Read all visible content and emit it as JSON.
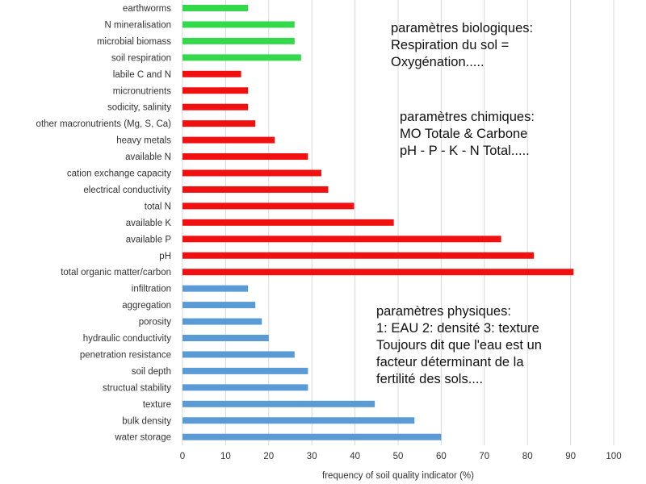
{
  "chart_data": {
    "type": "bar",
    "orientation": "horizontal",
    "title": "",
    "xlabel": "frequency of soil quality indicator (%)",
    "ylabel": "",
    "xlim": [
      0,
      100
    ],
    "xticks": [
      0,
      10,
      20,
      30,
      40,
      50,
      60,
      70,
      80,
      90,
      100
    ],
    "grid": "vertical",
    "colors": {
      "biological": "#33d94a",
      "chemical": "#f01010",
      "physical": "#5b9bd5"
    },
    "bars": [
      {
        "label": "earthworms",
        "value": 15.2,
        "group": "biological"
      },
      {
        "label": "N mineralisation",
        "value": 26,
        "group": "biological"
      },
      {
        "label": "microbial biomass",
        "value": 26,
        "group": "biological"
      },
      {
        "label": "soil respiration",
        "value": 27.5,
        "group": "biological"
      },
      {
        "label": "labile C and N",
        "value": 13.6,
        "group": "chemical"
      },
      {
        "label": "micronutrients",
        "value": 15.2,
        "group": "chemical"
      },
      {
        "label": "sodicity, salinity",
        "value": 15.2,
        "group": "chemical"
      },
      {
        "label": "other macronutrients (Mg, S, Ca)",
        "value": 16.9,
        "group": "chemical"
      },
      {
        "label": "heavy metals",
        "value": 21.4,
        "group": "chemical"
      },
      {
        "label": "available N",
        "value": 29.1,
        "group": "chemical"
      },
      {
        "label": "cation exchange capacity",
        "value": 32.2,
        "group": "chemical"
      },
      {
        "label": "electrical conductivity",
        "value": 33.8,
        "group": "chemical"
      },
      {
        "label": "total N",
        "value": 39.8,
        "group": "chemical"
      },
      {
        "label": "available K",
        "value": 49,
        "group": "chemical"
      },
      {
        "label": "available P",
        "value": 73.9,
        "group": "chemical"
      },
      {
        "label": "pH",
        "value": 81.5,
        "group": "chemical"
      },
      {
        "label": "total organic matter/carbon",
        "value": 90.7,
        "group": "chemical"
      },
      {
        "label": "infiltration",
        "value": 15.2,
        "group": "physical"
      },
      {
        "label": "aggregation",
        "value": 16.9,
        "group": "physical"
      },
      {
        "label": "porosity",
        "value": 18.4,
        "group": "physical"
      },
      {
        "label": "hydraulic conductivity",
        "value": 20,
        "group": "physical"
      },
      {
        "label": "penetration resistance",
        "value": 26,
        "group": "physical"
      },
      {
        "label": "soil depth",
        "value": 29.1,
        "group": "physical"
      },
      {
        "label": "structual stability",
        "value": 29.1,
        "group": "physical"
      },
      {
        "label": "texture",
        "value": 44.6,
        "group": "physical"
      },
      {
        "label": "bulk density",
        "value": 53.8,
        "group": "physical"
      },
      {
        "label": "water storage",
        "value": 60,
        "group": "physical"
      }
    ]
  },
  "annotations": {
    "biological": {
      "lines": [
        "paramètres biologiques:",
        "Respiration du sol =",
        "Oxygénation....."
      ]
    },
    "chemical": {
      "lines": [
        "paramètres chimiques:",
        "MO Totale & Carbone",
        "pH - P - K - N Total....."
      ]
    },
    "physical": {
      "lines": [
        "paramètres physiques:",
        "1: EAU 2: densité  3: texture",
        "Toujours dit que l'eau est un",
        "facteur déterminant de la",
        "fertilité des sols...."
      ]
    }
  }
}
